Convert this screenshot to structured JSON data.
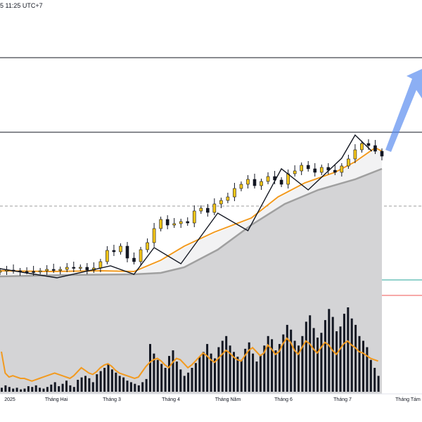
{
  "header": {
    "timestamp": "5 11:25 UTC+7"
  },
  "chart_data": {
    "type": "line",
    "title": "",
    "xlabel": "",
    "ylabel": "",
    "x_tick_labels": [
      "2025",
      "Tháng Hai",
      "Tháng 3",
      "Tháng 4",
      "Tháng Năm",
      "Tháng 6",
      "Tháng 7",
      "Tháng Tám"
    ],
    "price_series": {
      "name": "",
      "x": [
        0,
        4,
        8,
        12,
        16,
        20,
        24,
        28,
        32,
        36,
        40,
        44,
        48,
        52,
        56,
        60,
        64,
        68,
        72,
        76,
        80,
        84,
        88,
        92,
        96,
        100,
        104,
        108,
        112,
        116,
        120,
        124,
        128,
        132,
        136,
        140,
        144,
        148,
        152,
        156,
        160,
        164,
        168,
        172,
        176,
        180,
        184,
        188,
        192,
        196,
        200,
        204,
        208,
        212,
        216,
        220,
        224,
        228
      ],
      "values": [
        385,
        384,
        385,
        386,
        386,
        386,
        385,
        383,
        384,
        383,
        380,
        381,
        380,
        384,
        381,
        372,
        356,
        358,
        350,
        367,
        372,
        355,
        345,
        325,
        312,
        320,
        318,
        315,
        317,
        300,
        296,
        302,
        290,
        285,
        280,
        268,
        262,
        255,
        264,
        258,
        251,
        256,
        262,
        247,
        243,
        235,
        240,
        245,
        238,
        242,
        245,
        236,
        226,
        213,
        204,
        207,
        215,
        222
      ],
      "ylim_px_note": ""
    },
    "overlays": {
      "zigzag": {
        "name": "",
        "x": [
          0,
          34,
          66,
          80,
          92,
          108,
          130,
          148,
          168,
          184,
          204,
          212,
          222
        ],
        "values": [
          382,
          395,
          378,
          390,
          352,
          375,
          303,
          328,
          240,
          270,
          225,
          192,
          215
        ]
      },
      "ma_orange": {
        "name": "",
        "x": [
          0,
          30,
          60,
          80,
          96,
          110,
          128,
          150,
          166,
          182,
          200,
          212,
          224,
          228
        ],
        "values": [
          385,
          386,
          385,
          386,
          370,
          350,
          330,
          310,
          280,
          260,
          245,
          230,
          210,
          215
        ]
      },
      "ma_gray": {
        "name": "",
        "x": [
          0,
          40,
          80,
          96,
          110,
          130,
          150,
          170,
          190,
          212,
          228
        ],
        "values": [
          393,
          391,
          390,
          388,
          380,
          355,
          320,
          290,
          270,
          255,
          240
        ]
      }
    },
    "horizontal_lines": [
      {
        "name": "",
        "color": "#131722",
        "style": "solid"
      },
      {
        "name": "",
        "color": "#131722",
        "style": "solid"
      },
      {
        "name": "",
        "color": "#9e9e9e",
        "style": "dashed"
      },
      {
        "name": "",
        "color": "#26a69a",
        "style": "solid"
      },
      {
        "name": "",
        "color": "#ef5350",
        "style": "solid"
      }
    ],
    "volume_series": {
      "name": "",
      "values": [
        5,
        8,
        6,
        4,
        5,
        3,
        4,
        7,
        6,
        8,
        5,
        4,
        6,
        9,
        12,
        7,
        10,
        14,
        8,
        6,
        15,
        18,
        20,
        17,
        12,
        22,
        26,
        30,
        35,
        28,
        24,
        20,
        18,
        14,
        12,
        10,
        8,
        12,
        16,
        60,
        48,
        40,
        35,
        30,
        45,
        52,
        38,
        28,
        20,
        24,
        30,
        36,
        44,
        50,
        60,
        48,
        42,
        56,
        64,
        70,
        58,
        50,
        44,
        40,
        54,
        62,
        48,
        38,
        46,
        58,
        70,
        66,
        52,
        60,
        72,
        84,
        78,
        64,
        58,
        70,
        88,
        96,
        80,
        68,
        74,
        90,
        104,
        94,
        76,
        82,
        98,
        106,
        92,
        84,
        70,
        64,
        56,
        40,
        30,
        20
      ],
      "oscillator": [
        60,
        28,
        22,
        24,
        22,
        20,
        20,
        18,
        16,
        18,
        20,
        22,
        24,
        26,
        28,
        26,
        24,
        22,
        20,
        24,
        30,
        36,
        32,
        28,
        26,
        30,
        36,
        40,
        42,
        38,
        32,
        28,
        26,
        24,
        22,
        20,
        22,
        30,
        38,
        44,
        48,
        50,
        46,
        40,
        36,
        44,
        50,
        48,
        42,
        36,
        40,
        46,
        52,
        58,
        54,
        48,
        44,
        50,
        56,
        62,
        58,
        52,
        48,
        46,
        54,
        62,
        66,
        60,
        54,
        58,
        70,
        64,
        56,
        60,
        72,
        80,
        74,
        62,
        56,
        66,
        76,
        72,
        64,
        58,
        66,
        74,
        70,
        62,
        56,
        64,
        72,
        76,
        70,
        66,
        60,
        58,
        54,
        50,
        48,
        46
      ]
    },
    "forecast_arrow": {
      "name": "",
      "color": "#5b8def",
      "direction": "up"
    },
    "colors": {
      "candle_up": "#f5c518",
      "candle_down": "#131722",
      "ma_orange": "#f29a1f",
      "ma_gray": "#a0a0a0",
      "fill_gray": "#d4d4d6",
      "volume_bar": "#131722",
      "volume_oscillator": "#f29a1f",
      "grid_green": "#26a69a",
      "grid_red": "#ef5350",
      "arrow_blue": "#5b8def"
    }
  }
}
